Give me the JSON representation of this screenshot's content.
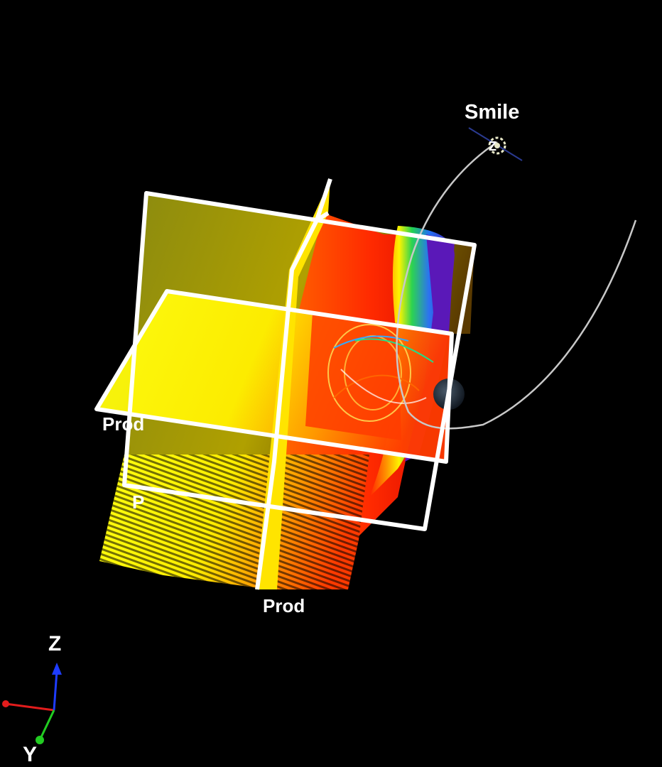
{
  "scene": {
    "background": "#000000",
    "satellite_label": "Smile",
    "satellite_marker_text": "Z",
    "plane_labels": [
      "Prod",
      "Prod",
      "P"
    ],
    "orbit_color": "#c8c8c8",
    "frame_color": "#ffffff",
    "earth_color": "#1e2a35",
    "colormap": [
      "#ffff00",
      "#ffcc00",
      "#ff8800",
      "#ff3300",
      "#00cc66",
      "#2288ff",
      "#6622cc"
    ]
  },
  "axes": {
    "labels": {
      "x": "",
      "y": "Y",
      "z": "Z"
    },
    "colors": {
      "x": "#e21c1c",
      "y": "#22cc22",
      "z": "#1e3cff"
    }
  }
}
